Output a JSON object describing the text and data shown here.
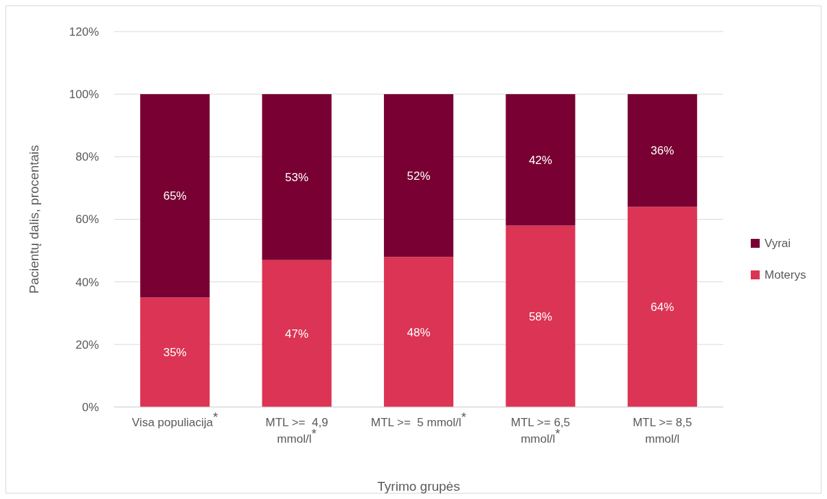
{
  "chart_data": {
    "type": "bar",
    "stacked": true,
    "xlabel": "Tyrimo grupės",
    "ylabel": "Pacientų dalis, procentais",
    "categories": [
      "Visa populiacija$^{*}$",
      "MTL >=  4,9 mmol/l$^{*}$",
      "MTL >=  5 mmol/l$^{*}$",
      "MTL >= 6,5 mmol/l$^{*}$",
      "MTL >= 8,5 mmol/l"
    ],
    "series": [
      {
        "name": "Moterys",
        "color": "#dc3454",
        "values": [
          35,
          47,
          48,
          58,
          64
        ],
        "value_labels": [
          "35%",
          "47%",
          "48%",
          "58%",
          "64%"
        ]
      },
      {
        "name": "Vyrai",
        "color": "#780032",
        "values": [
          65,
          53,
          52,
          42,
          36
        ],
        "value_labels": [
          "65%",
          "53%",
          "52%",
          "42%",
          "36%"
        ]
      }
    ],
    "ylim": [
      0,
      120
    ],
    "yticks": [
      {
        "value": 0,
        "label": "0%"
      },
      {
        "value": 20,
        "label": "20%"
      },
      {
        "value": 40,
        "label": "40%"
      },
      {
        "value": 60,
        "label": "60%"
      },
      {
        "value": 80,
        "label": "80%"
      },
      {
        "value": 100,
        "label": "100%"
      },
      {
        "value": 120,
        "label": "120%"
      }
    ],
    "grid": "y",
    "legend": "right"
  }
}
